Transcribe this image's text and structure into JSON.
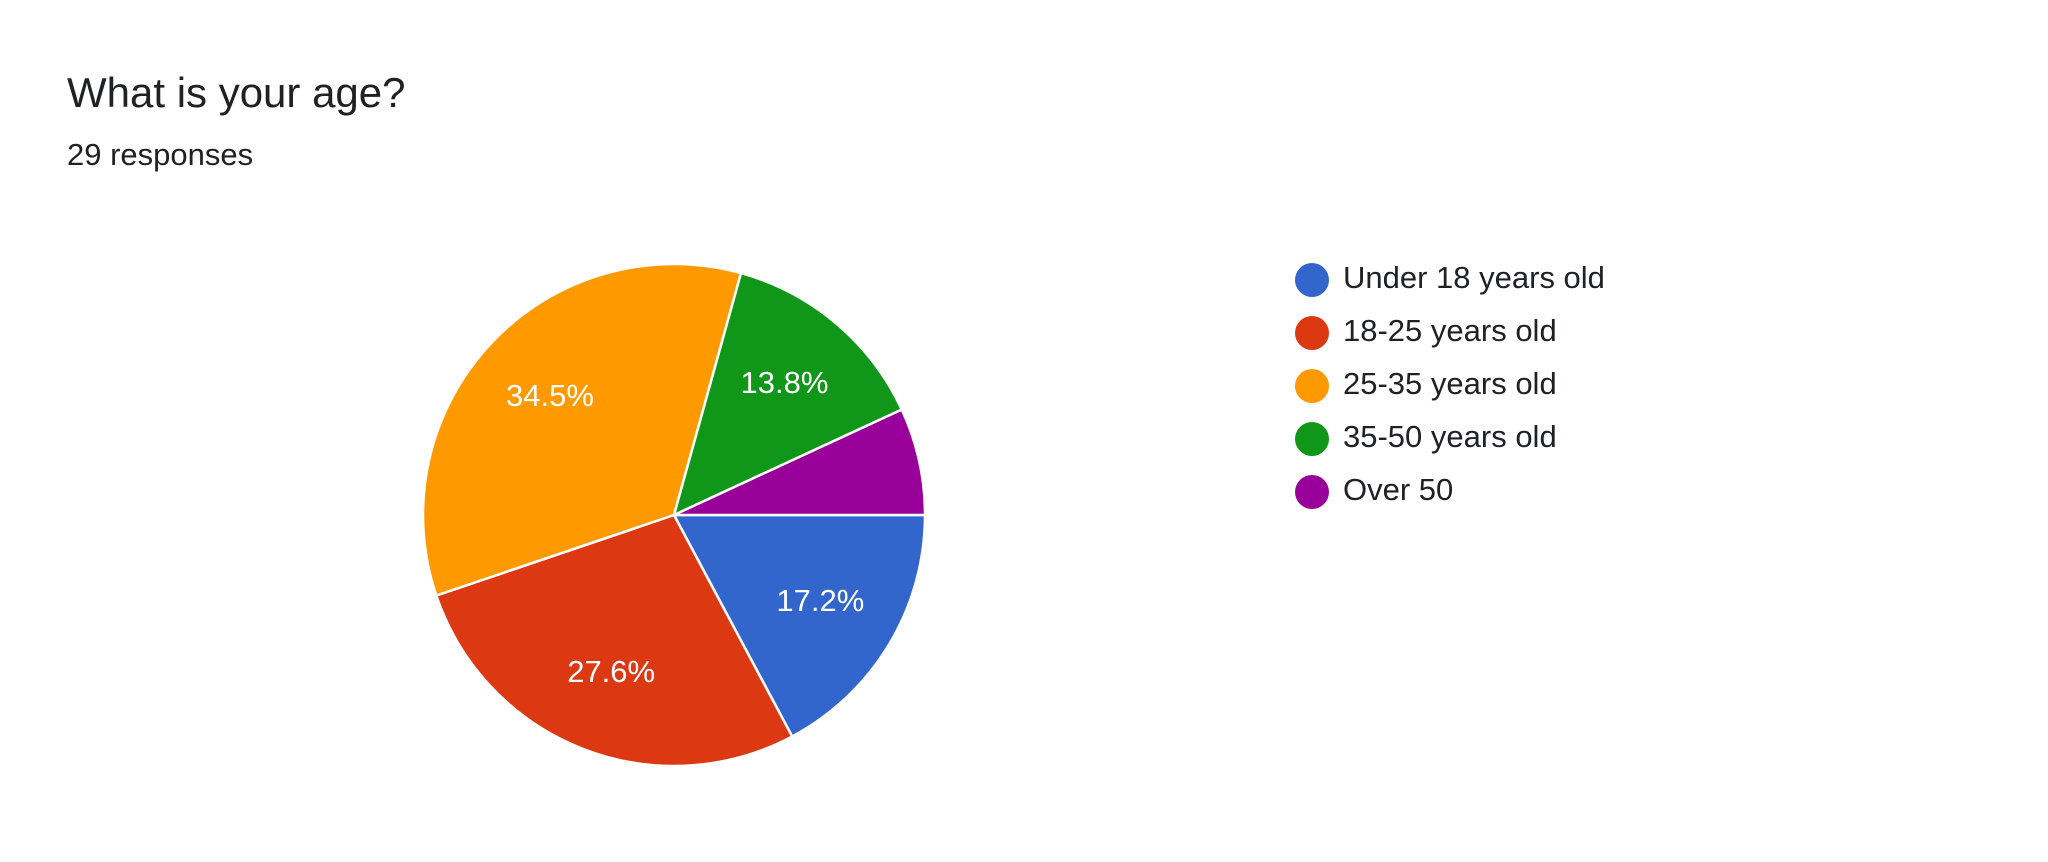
{
  "chart_data": {
    "type": "pie",
    "title": "What is your age?",
    "subtitle": "29 responses",
    "categories": [
      "Under 18 years old",
      "18-25 years old",
      "25-35 years old",
      "35-50 years old",
      "Over 50"
    ],
    "values": [
      17.2,
      27.6,
      34.5,
      13.8,
      6.9
    ],
    "value_labels": [
      "17.2%",
      "27.6%",
      "34.5%",
      "13.8%",
      null
    ],
    "colors": [
      "#3366cc",
      "#dc3912",
      "#ff9900",
      "#109618",
      "#990099"
    ],
    "legend": "right"
  }
}
